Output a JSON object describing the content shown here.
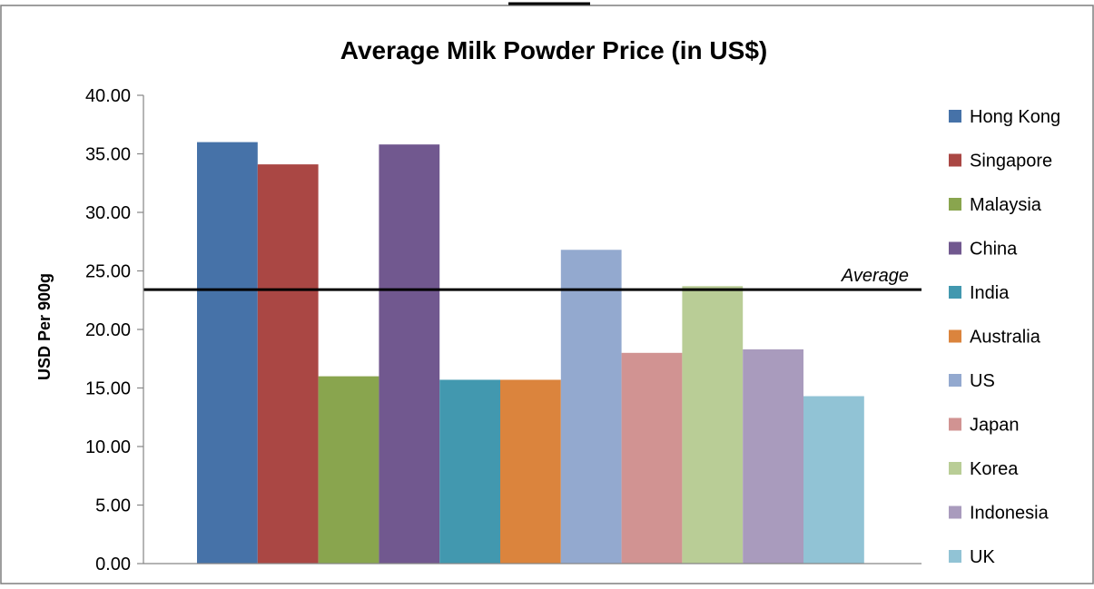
{
  "chart_data": {
    "type": "bar",
    "title": "Average Milk Powder Price (in US$)",
    "xlabel": "",
    "ylabel": "USD Per 900g",
    "ylim": [
      0,
      40
    ],
    "ytick_step": 5,
    "ytick_labels": [
      "0.00",
      "5.00",
      "10.00",
      "15.00",
      "20.00",
      "25.00",
      "30.00",
      "35.00",
      "40.00"
    ],
    "grid": false,
    "legend_position": "right",
    "series": [
      {
        "name": "Hong Kong",
        "value": 36.0,
        "color": "#4672A8"
      },
      {
        "name": "Singapore",
        "value": 34.1,
        "color": "#AA4744"
      },
      {
        "name": "Malaysia",
        "value": 16.0,
        "color": "#89A54E"
      },
      {
        "name": "China",
        "value": 35.8,
        "color": "#71588F"
      },
      {
        "name": "India",
        "value": 15.7,
        "color": "#4298AF"
      },
      {
        "name": "Australia",
        "value": 15.7,
        "color": "#DB843D"
      },
      {
        "name": "US",
        "value": 26.8,
        "color": "#93A9CF"
      },
      {
        "name": "Japan",
        "value": 18.0,
        "color": "#D19392"
      },
      {
        "name": "Korea",
        "value": 23.7,
        "color": "#B9CD96"
      },
      {
        "name": "Indonesia",
        "value": 18.3,
        "color": "#A99BBD"
      },
      {
        "name": "UK",
        "value": 14.3,
        "color": "#91C3D5"
      }
    ],
    "reference_line": {
      "label": "Average",
      "value": 23.4
    }
  }
}
